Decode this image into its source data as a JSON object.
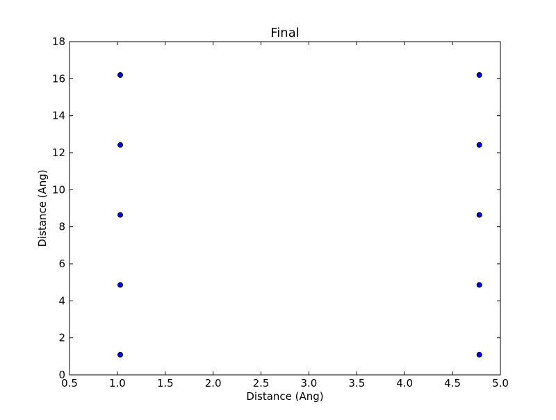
{
  "chart_data": {
    "type": "scatter",
    "title": "Final",
    "xlabel": "Distance (Ang)",
    "ylabel": "Distance (Ang)",
    "xlim": [
      0.5,
      5.0
    ],
    "ylim": [
      0,
      18
    ],
    "xticks": [
      0.5,
      1.0,
      1.5,
      2.0,
      2.5,
      3.0,
      3.5,
      4.0,
      4.5,
      5.0
    ],
    "xtick_labels": [
      "0.5",
      "1.0",
      "1.5",
      "2.0",
      "2.5",
      "3.0",
      "3.5",
      "4.0",
      "4.5",
      "5.0"
    ],
    "yticks": [
      0,
      2,
      4,
      6,
      8,
      10,
      12,
      14,
      16,
      18
    ],
    "ytick_labels": [
      "0",
      "2",
      "4",
      "6",
      "8",
      "10",
      "12",
      "14",
      "16",
      "18"
    ],
    "grid": false,
    "marker_color": "#0000ff",
    "marker_edge_color": "#000000",
    "points": [
      {
        "x": 1.03,
        "y": 16.2
      },
      {
        "x": 1.03,
        "y": 12.42
      },
      {
        "x": 1.03,
        "y": 8.64
      },
      {
        "x": 1.03,
        "y": 4.86
      },
      {
        "x": 1.03,
        "y": 1.09
      },
      {
        "x": 4.78,
        "y": 16.2
      },
      {
        "x": 4.78,
        "y": 12.42
      },
      {
        "x": 4.78,
        "y": 8.64
      },
      {
        "x": 4.78,
        "y": 4.86
      },
      {
        "x": 4.78,
        "y": 1.09
      }
    ]
  }
}
